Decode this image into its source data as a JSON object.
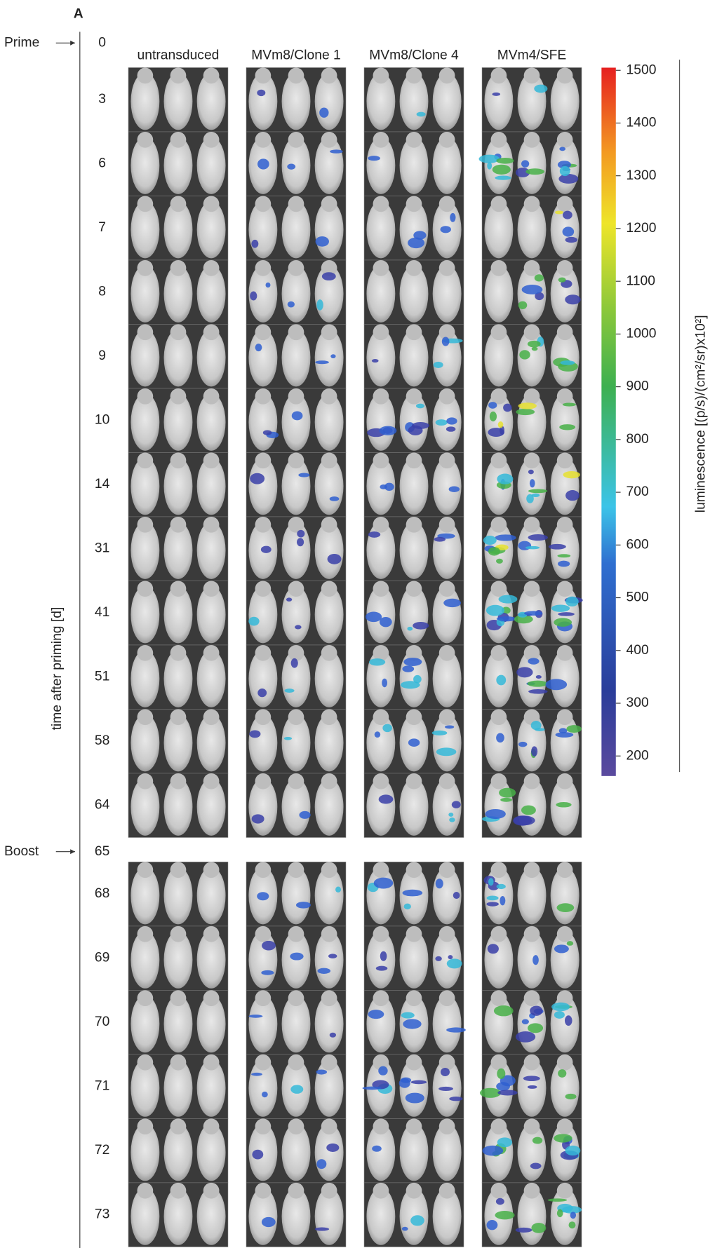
{
  "panel_label": "A",
  "time_axis": {
    "label": "time after priming [d]",
    "prime_label": "Prime",
    "boost_label": "Boost",
    "days": [
      0,
      3,
      6,
      7,
      8,
      9,
      10,
      14,
      31,
      41,
      51,
      58,
      64,
      65,
      68,
      69,
      70,
      71,
      72,
      73
    ]
  },
  "columns": [
    "untransduced",
    "MVm8/Clone 1",
    "MVm8/Clone 4",
    "MVm4/SFE"
  ],
  "colorbar": {
    "label": "luminescence [(p/s)/(cm²/sr)x10²]",
    "range": [
      162,
      1505
    ],
    "ticks": [
      1500,
      1400,
      1300,
      1200,
      1100,
      1000,
      900,
      800,
      700,
      600,
      500,
      400,
      300,
      200
    ]
  }
}
